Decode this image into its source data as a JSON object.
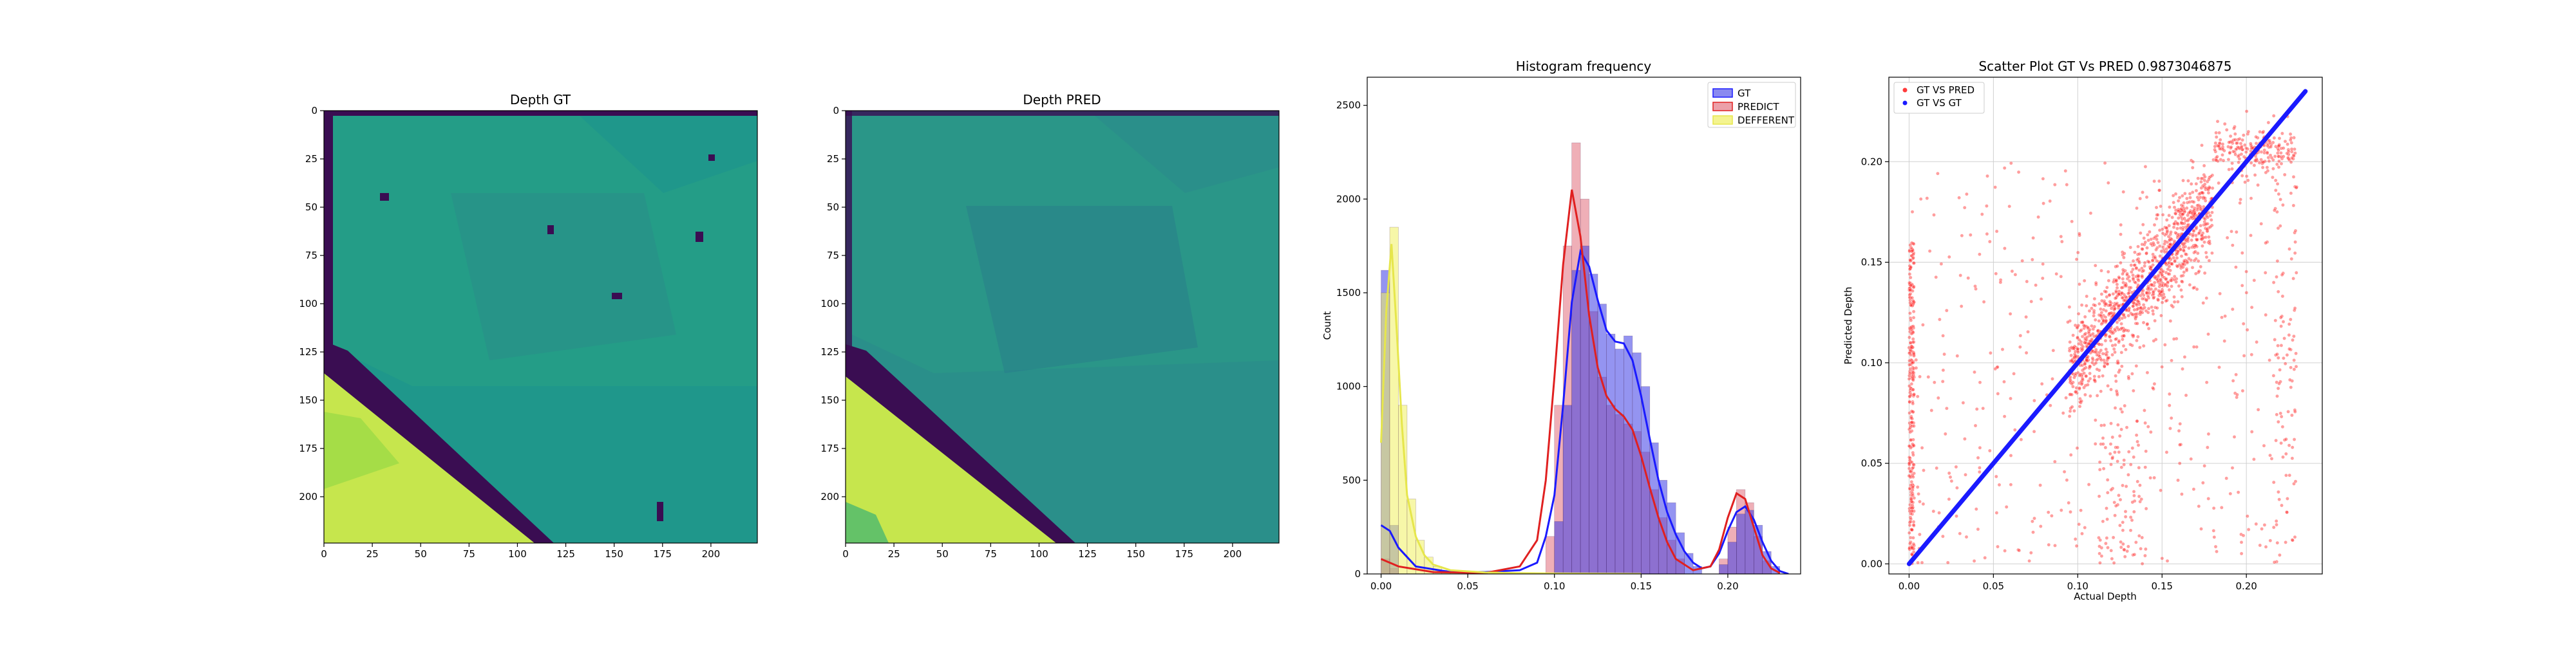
{
  "chart_data": [
    {
      "type": "heatmap",
      "title": "Depth GT",
      "xticks": [
        0,
        25,
        50,
        75,
        100,
        125,
        150,
        175,
        200
      ],
      "yticks": [
        0,
        25,
        50,
        75,
        100,
        125,
        150,
        175,
        200
      ],
      "xlim": [
        0,
        224
      ],
      "ylim": [
        224,
        0
      ],
      "colormap": "viridis",
      "colors": {
        "bg": "#1f978b",
        "diag": "#c6e64d",
        "edge": "#3a0d52",
        "mid": "#35b779",
        "shade": "#2a8c8a"
      }
    },
    {
      "type": "heatmap",
      "title": "Depth PRED",
      "xticks": [
        0,
        25,
        50,
        75,
        100,
        125,
        150,
        175,
        200
      ],
      "yticks": [
        0,
        25,
        50,
        75,
        100,
        125,
        150,
        175,
        200
      ],
      "xlim": [
        0,
        224
      ],
      "ylim": [
        224,
        0
      ],
      "colormap": "viridis",
      "colors": {
        "bg": "#2a8f8a",
        "diag": "#c6e64d",
        "edge": "#3a0d52",
        "mid": "#3bb273",
        "shade": "#28748c"
      }
    },
    {
      "type": "bar",
      "title": "Histogram frequency",
      "xlabel": "",
      "ylabel": "Count",
      "xticks": [
        "0.00",
        "0.05",
        "0.10",
        "0.15",
        "0.20"
      ],
      "yticks": [
        "0",
        "500",
        "1000",
        "1500",
        "2000",
        "2500"
      ],
      "xlim": [
        -0.008,
        0.242
      ],
      "ylim": [
        0,
        2650
      ],
      "legend_position": "top-right",
      "series": [
        {
          "name": "GT",
          "color": "#0000ff",
          "bins": [
            [
              0.0,
              1620
            ],
            [
              0.005,
              260
            ],
            [
              0.1,
              280
            ],
            [
              0.105,
              900
            ],
            [
              0.11,
              1620
            ],
            [
              0.115,
              1750
            ],
            [
              0.12,
              1600
            ],
            [
              0.125,
              1440
            ],
            [
              0.13,
              1280
            ],
            [
              0.135,
              1200
            ],
            [
              0.14,
              1270
            ],
            [
              0.145,
              1180
            ],
            [
              0.15,
              1000
            ],
            [
              0.155,
              700
            ],
            [
              0.16,
              500
            ],
            [
              0.165,
              380
            ],
            [
              0.17,
              220
            ],
            [
              0.175,
              110
            ],
            [
              0.18,
              40
            ],
            [
              0.195,
              50
            ],
            [
              0.2,
              170
            ],
            [
              0.205,
              320
            ],
            [
              0.21,
              340
            ],
            [
              0.215,
              260
            ],
            [
              0.22,
              120
            ],
            [
              0.225,
              40
            ]
          ],
          "kde": [
            [
              0.0,
              260
            ],
            [
              0.005,
              230
            ],
            [
              0.01,
              140
            ],
            [
              0.02,
              40
            ],
            [
              0.04,
              10
            ],
            [
              0.06,
              10
            ],
            [
              0.08,
              20
            ],
            [
              0.09,
              60
            ],
            [
              0.095,
              200
            ],
            [
              0.1,
              420
            ],
            [
              0.105,
              900
            ],
            [
              0.11,
              1450
            ],
            [
              0.115,
              1720
            ],
            [
              0.12,
              1640
            ],
            [
              0.125,
              1460
            ],
            [
              0.13,
              1300
            ],
            [
              0.135,
              1240
            ],
            [
              0.14,
              1230
            ],
            [
              0.145,
              1140
            ],
            [
              0.15,
              950
            ],
            [
              0.155,
              720
            ],
            [
              0.16,
              500
            ],
            [
              0.165,
              330
            ],
            [
              0.17,
              210
            ],
            [
              0.175,
              120
            ],
            [
              0.18,
              60
            ],
            [
              0.185,
              30
            ],
            [
              0.19,
              40
            ],
            [
              0.195,
              110
            ],
            [
              0.2,
              230
            ],
            [
              0.205,
              330
            ],
            [
              0.21,
              360
            ],
            [
              0.215,
              290
            ],
            [
              0.22,
              170
            ],
            [
              0.225,
              70
            ],
            [
              0.23,
              15
            ],
            [
              0.235,
              0
            ]
          ]
        },
        {
          "name": "PREDICT",
          "color": "#e06070",
          "bins": [
            [
              0.0,
              80
            ],
            [
              0.005,
              30
            ],
            [
              0.095,
              200
            ],
            [
              0.1,
              900
            ],
            [
              0.105,
              1750
            ],
            [
              0.11,
              2300
            ],
            [
              0.115,
              2000
            ],
            [
              0.12,
              1400
            ],
            [
              0.125,
              1050
            ],
            [
              0.13,
              900
            ],
            [
              0.135,
              850
            ],
            [
              0.14,
              800
            ],
            [
              0.145,
              760
            ],
            [
              0.15,
              650
            ],
            [
              0.155,
              450
            ],
            [
              0.16,
              300
            ],
            [
              0.165,
              180
            ],
            [
              0.17,
              80
            ],
            [
              0.195,
              80
            ],
            [
              0.2,
              250
            ],
            [
              0.205,
              450
            ],
            [
              0.21,
              380
            ],
            [
              0.215,
              200
            ],
            [
              0.22,
              70
            ]
          ],
          "kde": [
            [
              0.0,
              80
            ],
            [
              0.01,
              40
            ],
            [
              0.03,
              10
            ],
            [
              0.06,
              5
            ],
            [
              0.08,
              40
            ],
            [
              0.09,
              180
            ],
            [
              0.095,
              500
            ],
            [
              0.1,
              1050
            ],
            [
              0.105,
              1650
            ],
            [
              0.11,
              2050
            ],
            [
              0.115,
              1800
            ],
            [
              0.12,
              1380
            ],
            [
              0.125,
              1100
            ],
            [
              0.13,
              950
            ],
            [
              0.135,
              880
            ],
            [
              0.14,
              840
            ],
            [
              0.145,
              770
            ],
            [
              0.15,
              630
            ],
            [
              0.155,
              460
            ],
            [
              0.16,
              300
            ],
            [
              0.165,
              170
            ],
            [
              0.17,
              80
            ],
            [
              0.18,
              20
            ],
            [
              0.19,
              40
            ],
            [
              0.195,
              130
            ],
            [
              0.2,
              300
            ],
            [
              0.205,
              430
            ],
            [
              0.21,
              400
            ],
            [
              0.215,
              250
            ],
            [
              0.22,
              100
            ],
            [
              0.225,
              30
            ],
            [
              0.23,
              5
            ]
          ]
        },
        {
          "name": "DEFFERENT",
          "color": "#f0f060",
          "bins": [
            [
              0.0,
              1500
            ],
            [
              0.005,
              1850
            ],
            [
              0.01,
              900
            ],
            [
              0.015,
              400
            ],
            [
              0.02,
              180
            ],
            [
              0.025,
              90
            ],
            [
              0.03,
              40
            ],
            [
              0.035,
              20
            ],
            [
              0.04,
              10
            ]
          ],
          "kde": [
            [
              0.0,
              700
            ],
            [
              0.003,
              1400
            ],
            [
              0.006,
              1760
            ],
            [
              0.009,
              1300
            ],
            [
              0.012,
              800
            ],
            [
              0.015,
              420
            ],
            [
              0.02,
              200
            ],
            [
              0.025,
              100
            ],
            [
              0.03,
              50
            ],
            [
              0.04,
              20
            ],
            [
              0.06,
              8
            ],
            [
              0.08,
              4
            ],
            [
              0.1,
              2
            ],
            [
              0.15,
              0
            ]
          ]
        }
      ]
    },
    {
      "type": "scatter",
      "title": "Scatter Plot GT Vs PRED 0.9873046875",
      "xlabel": "Actual Depth",
      "ylabel": "Predicted Depth",
      "xticks": [
        "0.00",
        "0.05",
        "0.10",
        "0.15",
        "0.20"
      ],
      "yticks": [
        "0.00",
        "0.05",
        "0.10",
        "0.15",
        "0.20"
      ],
      "xlim": [
        -0.012,
        0.245
      ],
      "ylim": [
        -0.005,
        0.242
      ],
      "grid": true,
      "legend_position": "top-left",
      "series": [
        {
          "name": "GT VS PRED",
          "color": "#ff3b3b"
        },
        {
          "name": "GT VS GT",
          "color": "#1a1aff",
          "points": [
            [
              0.0,
              0.0
            ],
            [
              0.235,
              0.235
            ]
          ]
        }
      ]
    }
  ]
}
